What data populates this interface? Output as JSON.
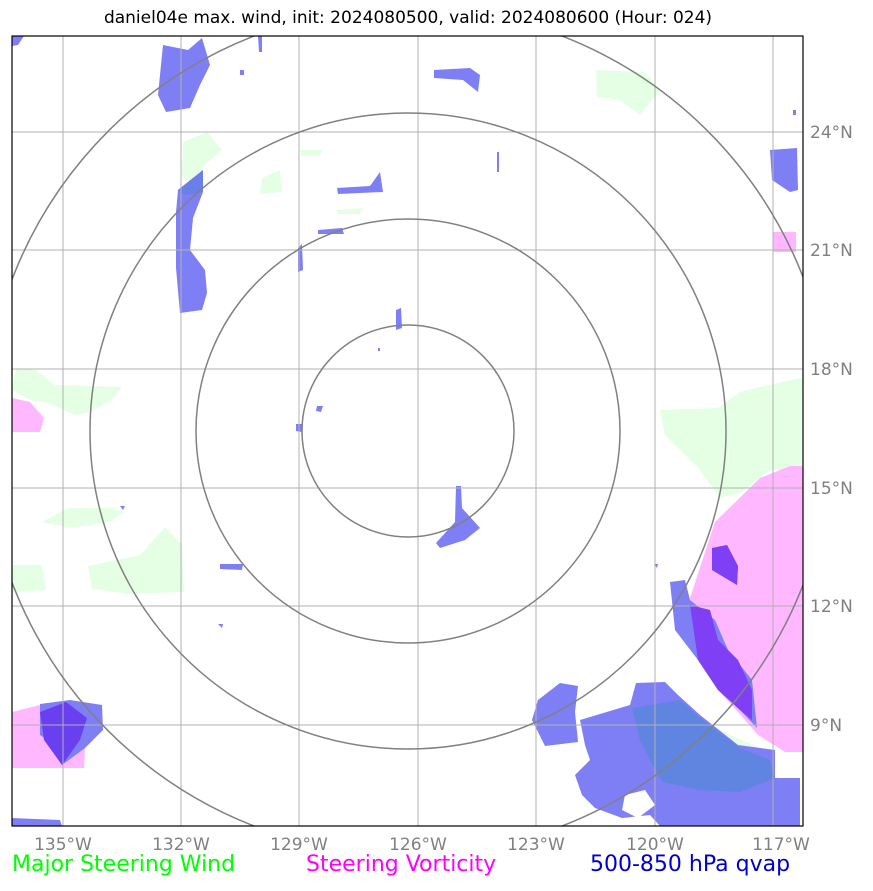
{
  "title": "daniel04e max. wind, init: 2024080500, valid: 2024080600 (Hour: 024)",
  "map": {
    "lon_ticks": [
      "135°W",
      "132°W",
      "129°W",
      "126°W",
      "123°W",
      "120°W",
      "117°W"
    ],
    "lat_ticks": [
      "24°N",
      "21°N",
      "18°N",
      "15°N",
      "12°N",
      "9°N"
    ]
  },
  "legend": {
    "wind": {
      "label": "Major Steering Wind",
      "color": "#00ff00"
    },
    "vorticity": {
      "label": "Steering Vorticity",
      "color": "#ff00ff"
    },
    "qvap": {
      "label": "500-850 hPa qvap",
      "color": "#0000cc"
    }
  },
  "colors": {
    "wind_fill": "#e5ffe5",
    "vorticity_fill": "#ffb8ff",
    "qvap_fill": "#7f7ff5",
    "grid": "#b0b0b0",
    "range_rings": "#808080"
  }
}
